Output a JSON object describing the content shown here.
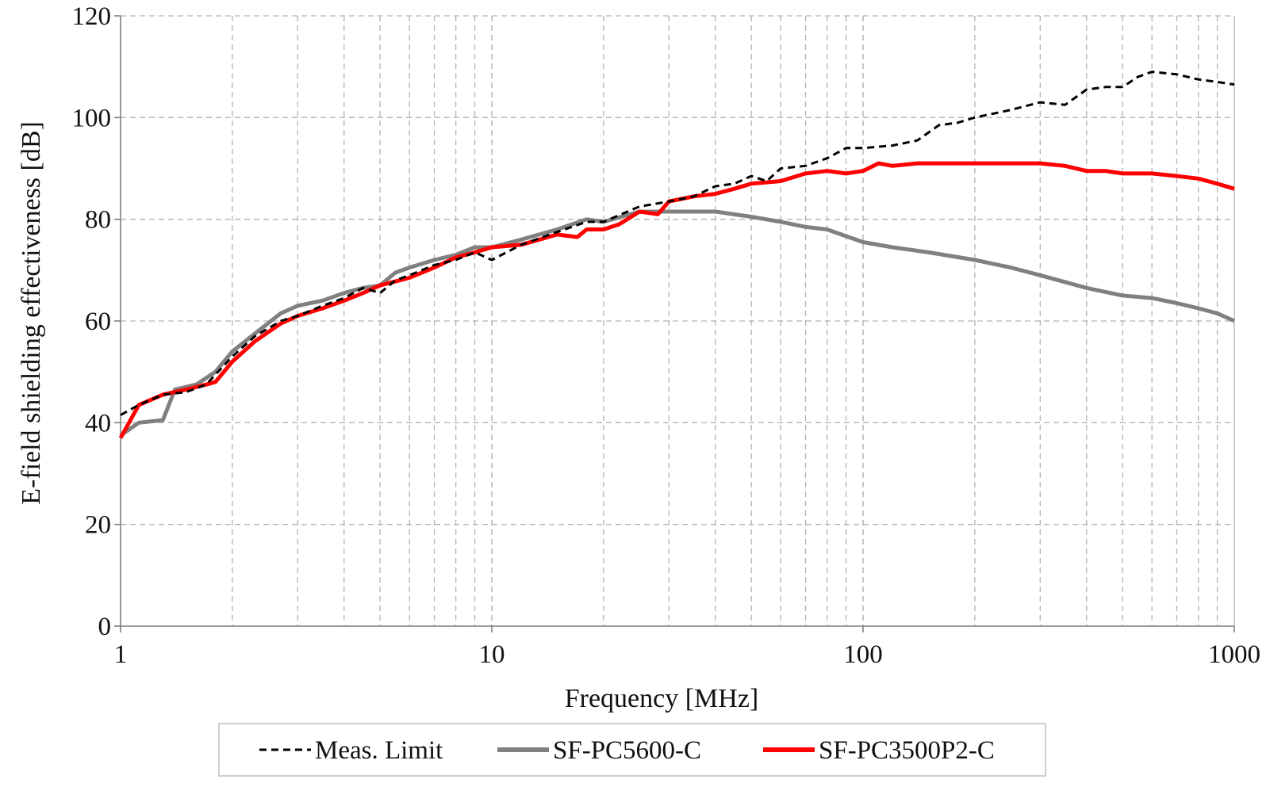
{
  "chart_data": {
    "type": "line",
    "title": "",
    "xlabel": "Frequency [MHz]",
    "ylabel": "E-field shielding effectiveness [dB]",
    "x_scale": "log",
    "xlim": [
      1,
      1000
    ],
    "ylim": [
      0,
      120
    ],
    "x_ticks": [
      1,
      10,
      100,
      1000
    ],
    "x_tick_labels": [
      "1",
      "10",
      "100",
      "1000"
    ],
    "y_ticks": [
      0,
      20,
      40,
      60,
      80,
      100,
      120
    ],
    "y_tick_labels": [
      "0",
      "20",
      "40",
      "60",
      "80",
      "100",
      "120"
    ],
    "grid": true,
    "legend_position": "bottom",
    "series": [
      {
        "name": "Meas. Limit",
        "color": "#000000",
        "style": "dashed",
        "x": [
          1,
          1.12,
          1.3,
          1.5,
          1.7,
          2,
          2.3,
          2.7,
          3,
          3.5,
          4,
          4.5,
          5,
          5.5,
          6,
          7,
          8,
          9,
          10,
          12,
          15,
          18,
          20,
          25,
          30,
          35,
          40,
          45,
          50,
          55,
          60,
          70,
          80,
          90,
          100,
          120,
          140,
          160,
          180,
          200,
          250,
          300,
          350,
          400,
          450,
          500,
          550,
          600,
          700,
          800,
          900,
          1000
        ],
        "y": [
          41.5,
          43.5,
          45.5,
          46,
          47.5,
          53,
          57,
          60,
          61,
          63,
          64.5,
          66.5,
          65.5,
          68,
          69,
          71,
          72,
          73.5,
          72,
          75,
          77.5,
          79.5,
          79.5,
          82.5,
          83.5,
          84.5,
          86.5,
          87,
          88.5,
          87.5,
          90,
          90.5,
          92,
          94,
          94,
          94.5,
          95.5,
          98.5,
          99,
          100,
          101.5,
          103,
          102.5,
          105.5,
          106,
          106,
          108,
          109,
          108.5,
          107.5,
          107,
          106.5
        ]
      },
      {
        "name": "SF-PC5600-C",
        "color": "#808080",
        "style": "solid",
        "x": [
          1,
          1.12,
          1.3,
          1.4,
          1.6,
          1.8,
          2,
          2.3,
          2.7,
          3,
          3.5,
          4,
          4.5,
          5,
          5.5,
          6,
          7,
          8,
          9,
          10,
          12,
          15,
          18,
          20,
          25,
          30,
          35,
          40,
          50,
          60,
          70,
          80,
          100,
          120,
          150,
          200,
          250,
          300,
          400,
          500,
          600,
          700,
          800,
          900,
          1000
        ],
        "y": [
          37.5,
          40,
          40.5,
          46.5,
          47.5,
          50,
          54,
          57.5,
          61.5,
          63,
          64,
          65.5,
          66.5,
          67,
          69.5,
          70.5,
          72,
          73,
          74.5,
          74.5,
          76,
          78,
          80,
          79.5,
          81.5,
          81.5,
          81.5,
          81.5,
          80.5,
          79.5,
          78.5,
          78,
          75.5,
          74.5,
          73.5,
          72,
          70.5,
          69,
          66.5,
          65,
          64.5,
          63.5,
          62.5,
          61.5,
          60
        ]
      },
      {
        "name": "SF-PC3500P2-C",
        "color": "#ff0000",
        "style": "solid",
        "x": [
          1,
          1.12,
          1.3,
          1.5,
          1.7,
          1.8,
          2,
          2.3,
          2.7,
          3,
          3.5,
          4,
          4.5,
          5,
          6,
          7,
          8,
          9,
          10,
          12,
          15,
          17,
          18,
          20,
          22,
          25,
          28,
          30,
          35,
          40,
          45,
          50,
          60,
          70,
          80,
          90,
          100,
          110,
          120,
          140,
          160,
          180,
          200,
          250,
          300,
          350,
          400,
          450,
          500,
          600,
          700,
          800,
          900,
          1000
        ],
        "y": [
          37,
          43.5,
          45.5,
          46.5,
          47.5,
          48,
          52,
          56,
          59.5,
          61,
          62.5,
          64,
          65.5,
          67,
          68.5,
          70.5,
          72.5,
          73.5,
          74.5,
          75,
          77,
          76.5,
          78,
          78,
          79,
          81.5,
          81,
          83.5,
          84.5,
          85,
          86,
          87,
          87.5,
          89,
          89.5,
          89,
          89.5,
          91,
          90.5,
          91,
          91,
          91,
          91,
          91,
          91,
          90.5,
          89.5,
          89.5,
          89,
          89,
          88.5,
          88,
          87,
          86
        ]
      }
    ]
  }
}
